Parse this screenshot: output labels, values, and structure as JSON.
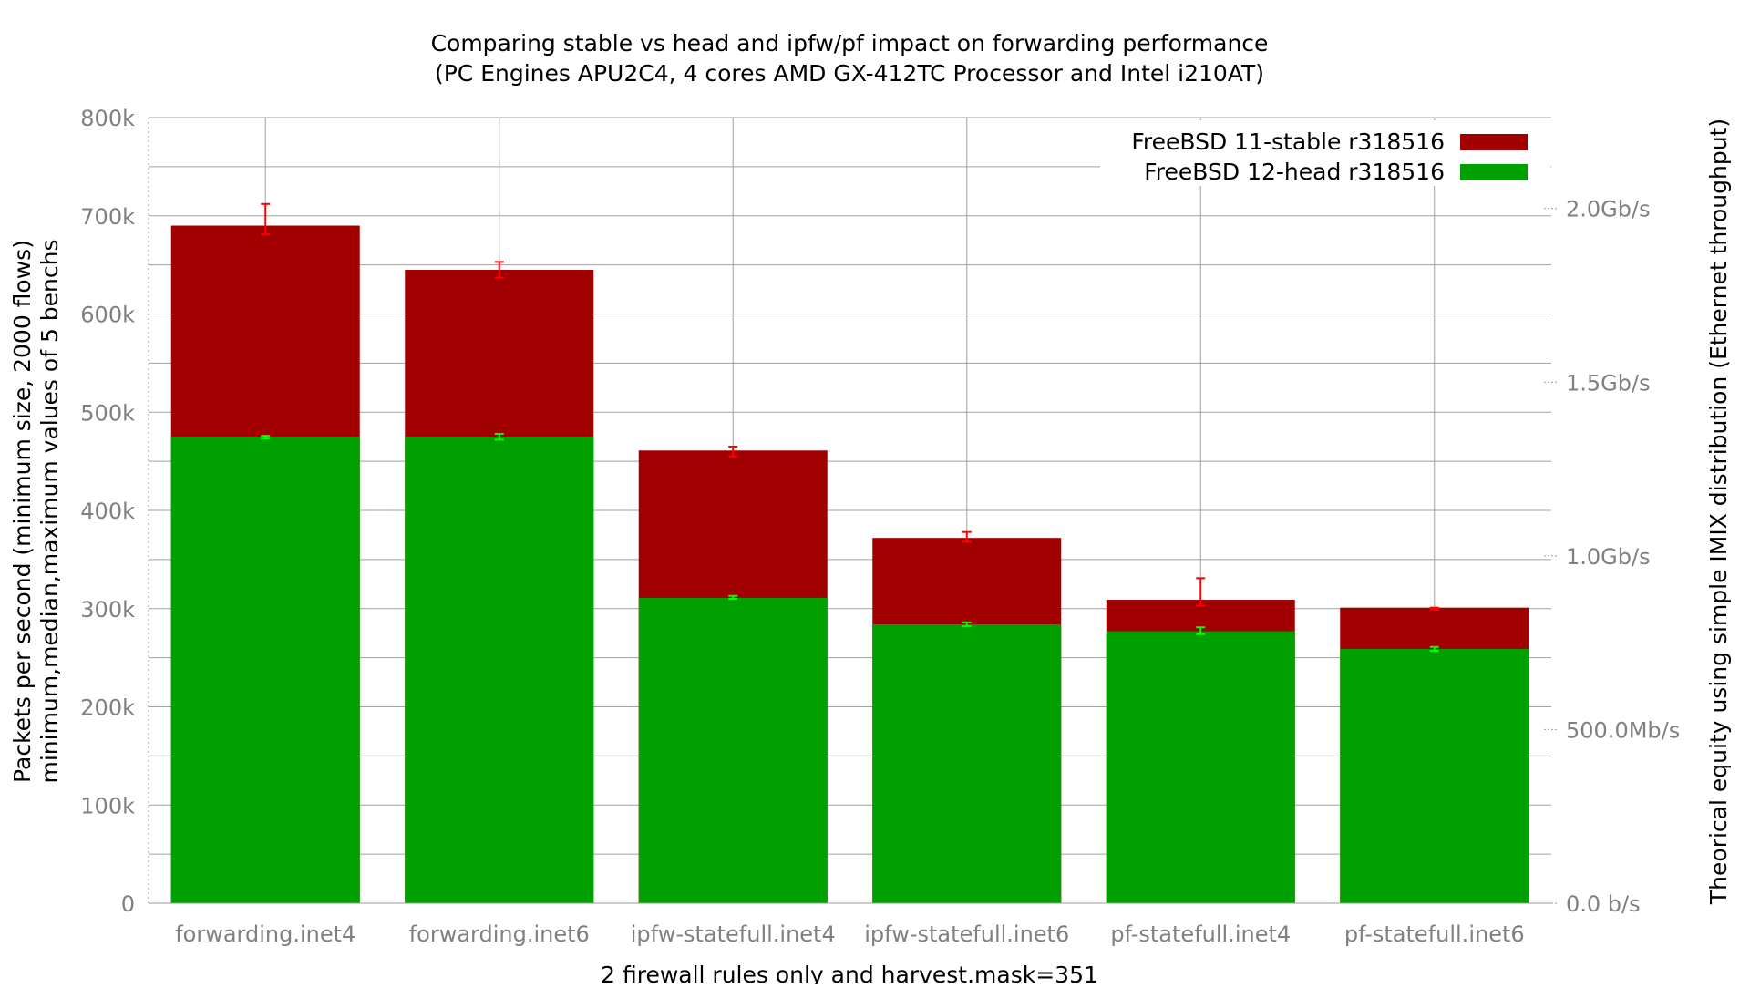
{
  "chart_data": {
    "type": "bar",
    "title": "Comparing stable vs head and ipfw/pf impact on forwarding performance",
    "subtitle": "(PC Engines APU2C4, 4 cores AMD GX-412TC Processor and Intel i210AT)",
    "xlabel": "2 firewall rules only and harvest.mask=351",
    "ylabel": "Packets per second (minimum size, 2000 flows)",
    "ylabel2": "minimum,median,maximum values of 5 benchs",
    "y2label": "Theorical equity using simple IMIX distribution (Ethernet throughput)",
    "categories": [
      "forwarding.inet4",
      "forwarding.inet6",
      "ipfw-statefull.inet4",
      "ipfw-statefull.inet6",
      "pf-statefull.inet4",
      "pf-statefull.inet6"
    ],
    "ylim": [
      0,
      800000
    ],
    "y_ticks": [
      0,
      100000,
      200000,
      300000,
      400000,
      500000,
      600000,
      700000,
      800000
    ],
    "y_tick_labels": [
      "0",
      "100k",
      "200k",
      "300k",
      "400k",
      "500k",
      "600k",
      "700k",
      "800k"
    ],
    "y2_ticks": [
      0,
      500000000,
      1000000000,
      1500000000,
      2000000000
    ],
    "y2_tick_labels": [
      "0.0 b/s",
      "500.0Mb/s",
      "1.0Gb/s",
      "1.5Gb/s",
      "2.0Gb/s"
    ],
    "y2_scale_bps_per_pps": 2827,
    "grid": true,
    "legend_position": "top-right",
    "overlaid_bars": true,
    "series": [
      {
        "name": "FreeBSD 11-stable r318516",
        "color": "#a00000",
        "errbar_color": "#ff0000",
        "values": [
          690000,
          645000,
          461000,
          372000,
          309000,
          301000
        ],
        "min": [
          681000,
          637000,
          455000,
          368000,
          303000,
          299000
        ],
        "max": [
          712000,
          653000,
          465000,
          378000,
          331000,
          301000
        ]
      },
      {
        "name": "FreeBSD 12-head r318516",
        "color": "#00a000",
        "errbar_color": "#00ff00",
        "values": [
          475000,
          475000,
          311000,
          284000,
          277000,
          259000
        ],
        "min": [
          473000,
          472000,
          310000,
          282000,
          274000,
          257000
        ],
        "max": [
          476000,
          478000,
          313000,
          286000,
          281000,
          261000
        ]
      }
    ]
  }
}
